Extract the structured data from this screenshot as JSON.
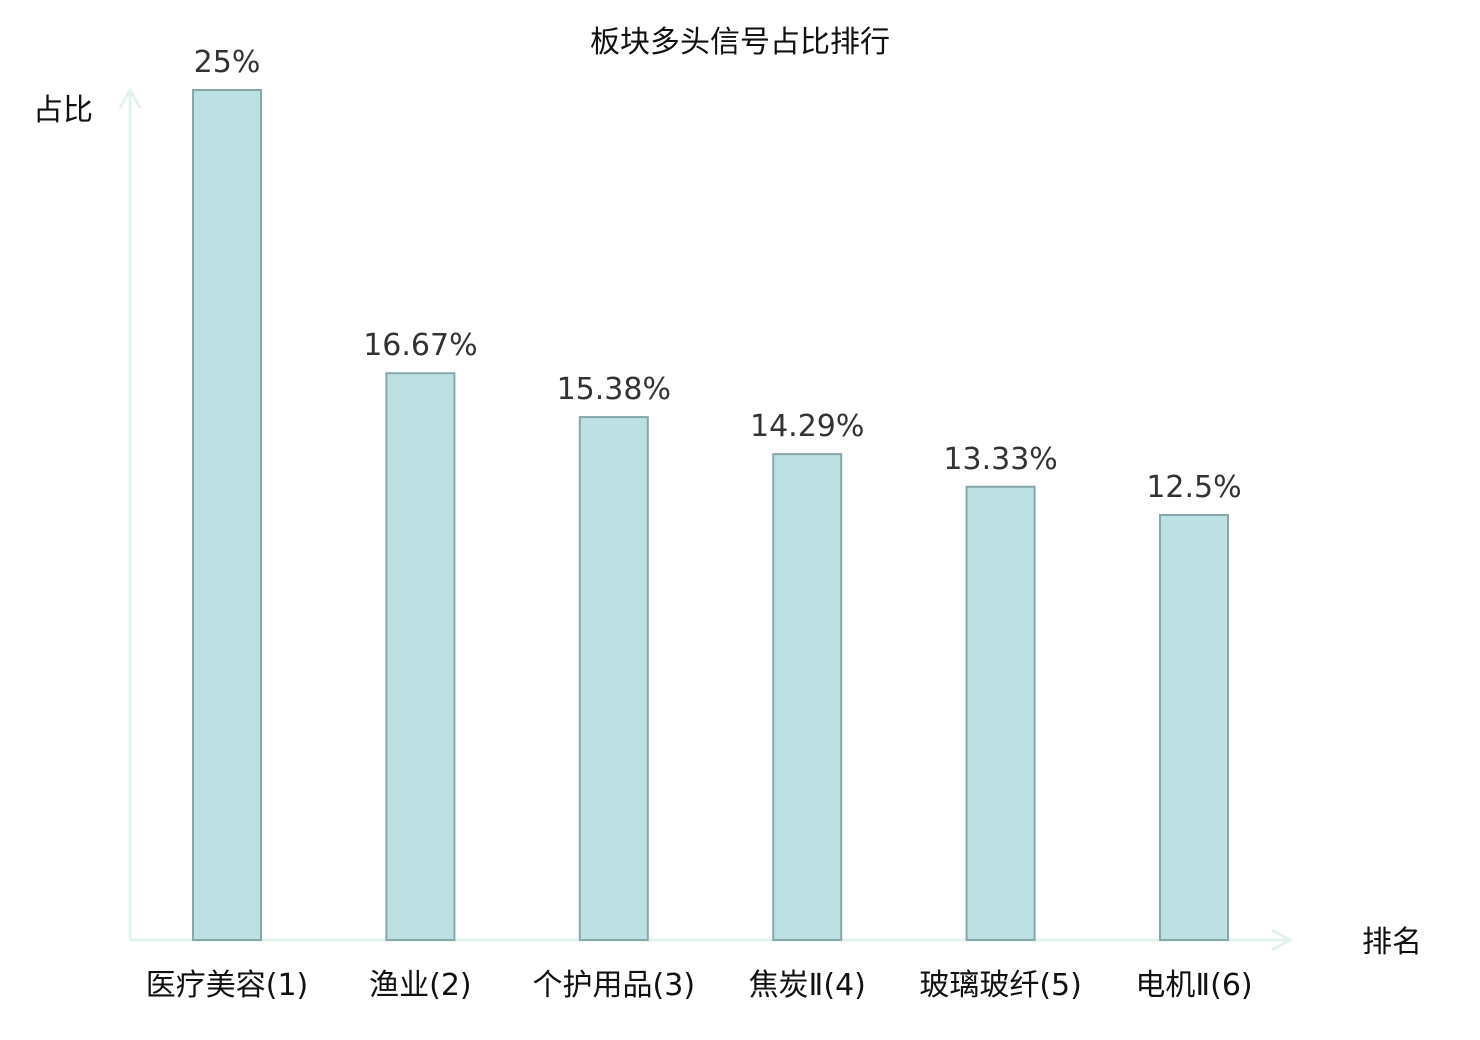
{
  "chart_data": {
    "type": "bar",
    "title": "板块多头信号占比排行",
    "xlabel": "排名",
    "ylabel": "占比",
    "categories": [
      "医疗美容(1)",
      "渔业(2)",
      "个护用品(3)",
      "焦炭Ⅱ(4)",
      "玻璃玻纤(5)",
      "电机Ⅱ(6)"
    ],
    "values": [
      25,
      16.67,
      15.38,
      14.29,
      13.33,
      12.5
    ],
    "value_labels": [
      "25%",
      "16.67%",
      "15.38%",
      "14.29%",
      "13.33%",
      "12.5%"
    ],
    "ylim": [
      0,
      25
    ],
    "grid": false,
    "legend": "none",
    "highlight_index": 5,
    "colors": {
      "bar_fill": "#bde0e3",
      "bar_stroke": "#86a8ab",
      "axis": "#e0f3ef",
      "text": "#111111",
      "value_text": "#333333",
      "highlight": "#e8161b"
    }
  }
}
